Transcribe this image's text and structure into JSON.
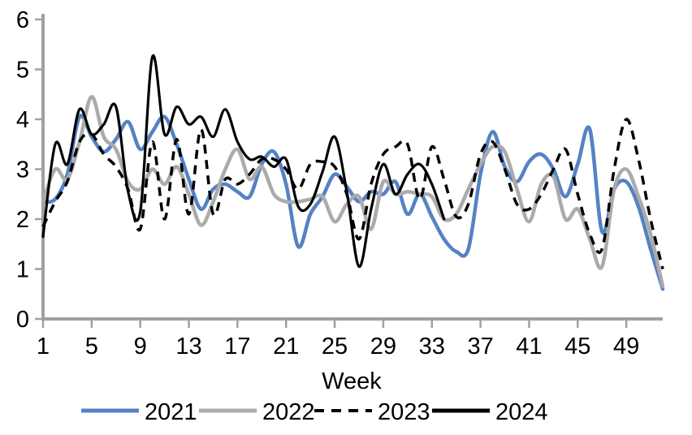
{
  "chart_data": {
    "type": "line",
    "title": "",
    "xlabel": "Week",
    "ylabel": "",
    "xlim": [
      1,
      52
    ],
    "ylim": [
      0,
      6
    ],
    "grid": false,
    "legend_position": "bottom",
    "axis_color": "#A0A0A0",
    "text_color": "#000000",
    "y_ticks": [
      0,
      1,
      2,
      3,
      4,
      5,
      6
    ],
    "x_ticks": [
      1,
      5,
      9,
      13,
      17,
      21,
      25,
      29,
      33,
      37,
      41,
      45,
      49
    ],
    "x": [
      1,
      2,
      3,
      4,
      5,
      6,
      7,
      8,
      9,
      10,
      11,
      12,
      13,
      14,
      15,
      16,
      17,
      18,
      19,
      20,
      21,
      22,
      23,
      24,
      25,
      26,
      27,
      28,
      29,
      30,
      31,
      32,
      33,
      34,
      35,
      36,
      37,
      38,
      39,
      40,
      41,
      42,
      43,
      44,
      45,
      46,
      47,
      48,
      49,
      50,
      51,
      52
    ],
    "series": [
      {
        "name": "2021",
        "color": "#5582C3",
        "style": "solid",
        "width": 4.5,
        "values": [
          2.35,
          2.4,
          2.9,
          4.05,
          3.65,
          3.35,
          3.6,
          3.95,
          3.4,
          3.75,
          4.05,
          3.5,
          2.8,
          2.2,
          2.6,
          2.7,
          2.55,
          2.45,
          3.1,
          3.35,
          2.7,
          1.45,
          2.1,
          2.45,
          2.9,
          2.65,
          2.35,
          2.55,
          2.5,
          2.75,
          2.1,
          2.5,
          2.05,
          1.6,
          1.35,
          1.4,
          2.9,
          3.75,
          3.05,
          2.75,
          3.15,
          3.3,
          3.0,
          2.45,
          3.1,
          3.8,
          1.75,
          2.6,
          2.75,
          2.25,
          1.4,
          0.6
        ]
      },
      {
        "name": "2022",
        "color": "#ABABAB",
        "style": "solid",
        "width": 4.5,
        "values": [
          2.35,
          3.0,
          2.8,
          3.55,
          4.45,
          3.65,
          3.4,
          2.75,
          2.6,
          3.0,
          2.7,
          3.05,
          2.5,
          1.88,
          2.35,
          3.0,
          3.4,
          2.8,
          3.05,
          2.5,
          2.35,
          2.35,
          2.4,
          2.45,
          1.95,
          2.3,
          2.45,
          1.8,
          2.75,
          2.5,
          2.55,
          2.5,
          2.45,
          2.0,
          2.1,
          2.6,
          3.1,
          3.45,
          3.35,
          2.6,
          1.95,
          2.7,
          2.85,
          2.0,
          2.2,
          1.6,
          1.05,
          2.6,
          3.0,
          2.45,
          1.7,
          0.65
        ]
      },
      {
        "name": "2023",
        "color": "#000000",
        "style": "dashed",
        "width": 3.5,
        "values": [
          1.85,
          2.35,
          2.75,
          3.55,
          3.7,
          3.3,
          3.05,
          2.6,
          1.8,
          3.55,
          2.0,
          3.6,
          2.1,
          3.8,
          2.1,
          2.8,
          2.7,
          2.9,
          3.2,
          3.2,
          3.0,
          2.6,
          3.1,
          3.15,
          3.05,
          2.5,
          1.6,
          2.7,
          3.3,
          3.45,
          3.5,
          2.4,
          3.45,
          2.8,
          2.05,
          2.3,
          3.3,
          3.55,
          3.0,
          2.3,
          2.2,
          2.5,
          3.0,
          3.4,
          2.5,
          1.7,
          1.4,
          3.0,
          4.0,
          3.2,
          2.0,
          1.0
        ]
      },
      {
        "name": "2024",
        "color": "#000000",
        "style": "solid",
        "width": 3.2,
        "values": [
          1.65,
          3.5,
          3.1,
          4.2,
          3.7,
          3.9,
          4.25,
          2.55,
          2.15,
          5.25,
          3.7,
          4.25,
          3.9,
          4.05,
          3.65,
          4.2,
          3.55,
          3.2,
          3.25,
          3.05,
          3.2,
          2.25,
          2.3,
          2.95,
          3.65,
          2.55,
          1.05,
          2.2,
          3.1,
          2.5,
          2.9,
          3.1,
          2.7,
          2.0
        ]
      }
    ]
  }
}
